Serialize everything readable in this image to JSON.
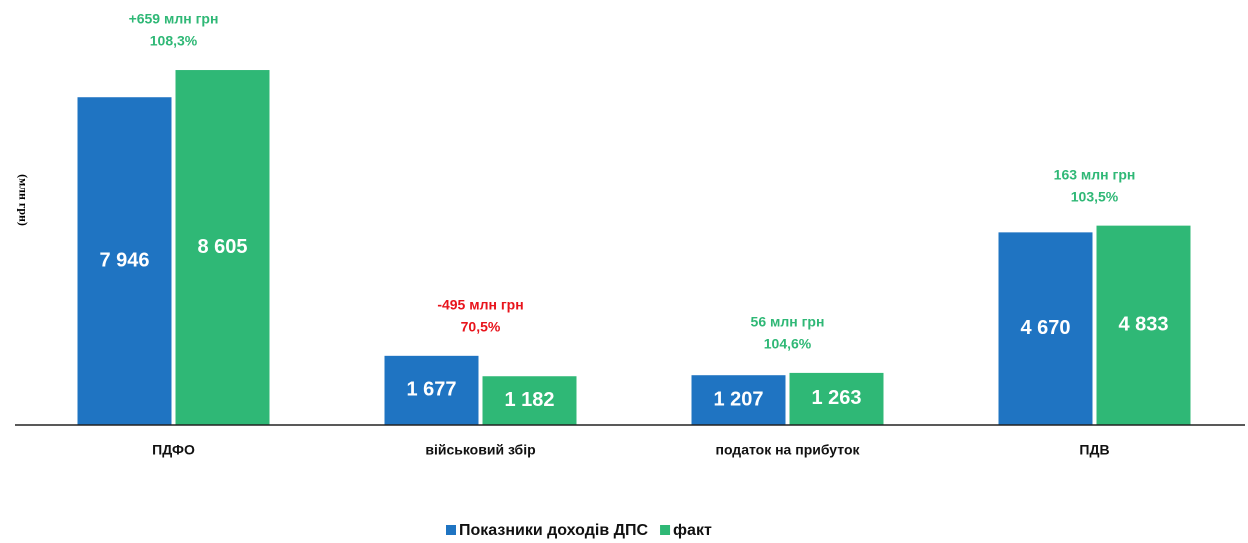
{
  "chart_data": {
    "type": "bar",
    "y_axis_label": "(млн грн)",
    "categories": [
      "ПДФО",
      "військовий  збір",
      "податок  на прибуток",
      "ПДВ"
    ],
    "series": [
      {
        "name": "Показники доходів ДПС",
        "color": "#1f74c2",
        "values": [
          7946,
          1677,
          1207,
          4670
        ],
        "value_labels": [
          "7 946",
          "1 677",
          "1 207",
          "4 670"
        ]
      },
      {
        "name": "факт",
        "color": "#2fb876",
        "values": [
          8605,
          1182,
          1263,
          4833
        ],
        "value_labels": [
          "8 605",
          "1 182",
          "1 263",
          "4 833"
        ]
      }
    ],
    "annotations": [
      {
        "lines": [
          "+659 млн грн",
          "108,3%"
        ],
        "color": "#2fb876"
      },
      {
        "lines": [
          "-495 млн грн",
          "70,5%"
        ],
        "color": "#e8141c"
      },
      {
        "lines": [
          "56 млн грн",
          "104,6%"
        ],
        "color": "#2fb876"
      },
      {
        "lines": [
          "163  млн грн",
          "103,5%"
        ],
        "color": "#2fb876"
      }
    ],
    "ylim": [
      0,
      9600
    ]
  }
}
